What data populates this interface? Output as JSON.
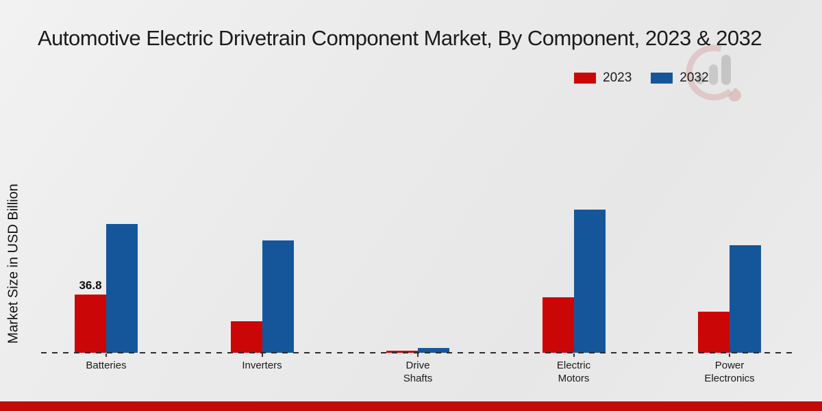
{
  "title": "Automotive Electric Drivetrain Component Market, By Component, 2023 & 2032",
  "y_axis_label": "Market Size in USD Billion",
  "legend": {
    "items": [
      {
        "label": "2023",
        "color": "#cb0606"
      },
      {
        "label": "2032",
        "color": "#15569b"
      }
    ]
  },
  "colors": {
    "series_2023": "#cb0606",
    "series_2032": "#15569b",
    "bottom_strip": "#c10b0b",
    "baseline": "#2d2d2d",
    "background": "#ebebeb",
    "text": "#1b1b1b"
  },
  "watermark": {
    "name": "market-research-future-logo"
  },
  "chart_data": {
    "type": "bar",
    "title": "Automotive Electric Drivetrain Component Market, By Component, 2023 & 2032",
    "xlabel": "",
    "ylabel": "Market Size in USD Billion",
    "categories": [
      "Batteries",
      "Inverters",
      "Drive Shafts",
      "Electric Motors",
      "Power Electronics"
    ],
    "series": [
      {
        "name": "2023",
        "color": "#cb0606",
        "values": [
          36.8,
          20,
          1.2,
          35.1,
          26
        ]
      },
      {
        "name": "2032",
        "color": "#15569b",
        "values": [
          81.4,
          71,
          3,
          90.5,
          68
        ]
      }
    ],
    "data_labels": [
      {
        "category": "Batteries",
        "series": "2023",
        "text": "36.8"
      }
    ],
    "ylim": [
      0,
      100
    ],
    "grid": false,
    "axis_style": "dashed-baseline-only",
    "legend_position": "top-right"
  }
}
